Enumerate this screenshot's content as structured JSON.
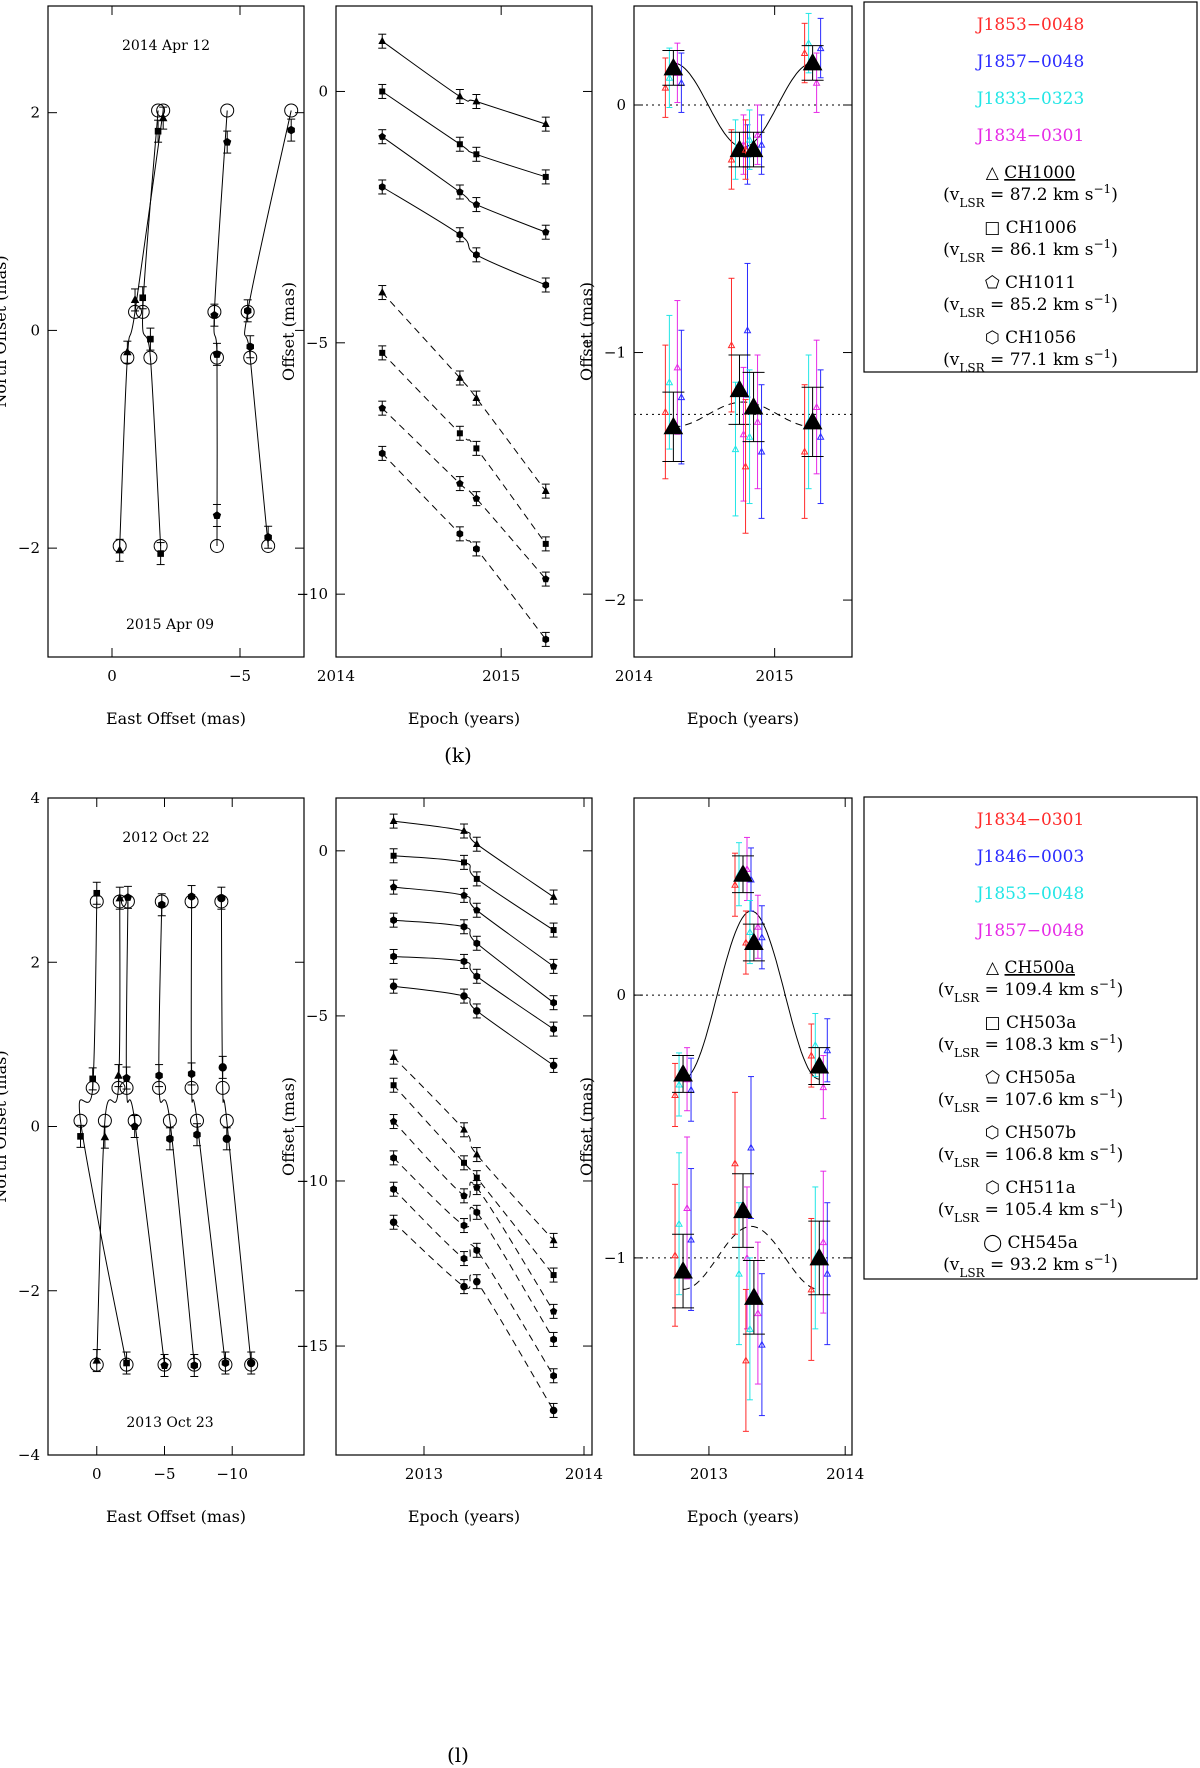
{
  "figure": {
    "panels": [
      {
        "caption": "(k)",
        "sky": {
          "xlabel": "East Offset (mas)",
          "ylabel": "North Offset (mas)",
          "xlim": [
            2.5,
            -7.5
          ],
          "ylim": [
            -3.0,
            2.98
          ],
          "xticks": [
            0,
            -5
          ],
          "yticks": [
            -2,
            0,
            2
          ],
          "epoch_start": "2014 Apr 12",
          "epoch_end": "2015 Apr 09",
          "spots": [
            {
              "x": [
                -2.0,
                -0.9,
                -0.6,
                -0.3
              ],
              "y": [
                1.95,
                0.28,
                -0.2,
                -2.02
              ],
              "marker": "triangle"
            },
            {
              "x": [
                -1.8,
                -1.2,
                -1.5,
                -1.9
              ],
              "y": [
                1.83,
                0.3,
                -0.08,
                -2.05
              ],
              "marker": "square"
            },
            {
              "x": [
                -4.5,
                -4.0,
                -4.1,
                -4.1
              ],
              "y": [
                1.73,
                0.14,
                -0.22,
                -1.7
              ],
              "marker": "pentagon"
            },
            {
              "x": [
                -7.0,
                -5.3,
                -5.4,
                -6.1
              ],
              "y": [
                1.84,
                0.18,
                -0.15,
                -1.9
              ],
              "marker": "hexagon"
            }
          ],
          "model_x": [
            -2.0,
            -0.4,
            -0.7,
            -0.3
          ],
          "model_y": [
            2.02,
            0.17,
            -0.25,
            -1.98
          ]
        },
        "time": {
          "xlabel": "Epoch (years)",
          "ylabel": "Offset (mas)",
          "xlim": [
            2014.0,
            2015.55
          ],
          "ylim": [
            -11.25,
            1.7
          ],
          "xticks": [
            2014,
            2015
          ],
          "yticks": [
            0,
            -5,
            -10
          ],
          "epochs": [
            2014.28,
            2014.75,
            2014.85,
            2015.27
          ],
          "series": [
            {
              "values": [
                1.0,
                -0.1,
                -0.2,
                -0.65
              ],
              "style": "solid",
              "marker": "triangle"
            },
            {
              "values": [
                0.0,
                -1.05,
                -1.25,
                -1.7
              ],
              "style": "solid",
              "marker": "square"
            },
            {
              "values": [
                -0.9,
                -2.0,
                -2.25,
                -2.8
              ],
              "style": "solid",
              "marker": "pentagon"
            },
            {
              "values": [
                -1.9,
                -2.85,
                -3.25,
                -3.85
              ],
              "style": "solid",
              "marker": "hexagon"
            },
            {
              "values": [
                -4.0,
                -5.7,
                -6.1,
                -7.95
              ],
              "style": "dashed",
              "marker": "triangle"
            },
            {
              "values": [
                -5.2,
                -6.8,
                -7.1,
                -9.0
              ],
              "style": "dashed",
              "marker": "square"
            },
            {
              "values": [
                -6.3,
                -7.8,
                -8.1,
                -9.7
              ],
              "style": "dashed",
              "marker": "pentagon"
            },
            {
              "values": [
                -7.2,
                -8.8,
                -9.1,
                -10.9
              ],
              "style": "dashed",
              "marker": "hexagon"
            }
          ]
        },
        "residual": {
          "xlabel": "Epoch (years)",
          "ylabel": "Offset (mas)",
          "xlim": [
            2014.0,
            2015.55
          ],
          "ylim": [
            -2.23,
            0.4
          ],
          "xticks": [
            2014,
            2015
          ],
          "yticks": [
            0,
            -1,
            -2
          ],
          "epochs": [
            2014.28,
            2014.75,
            2014.85,
            2015.27
          ],
          "upper_mean": [
            0.15,
            -0.18,
            -0.18,
            0.17
          ],
          "lower_mean": [
            -1.3,
            -1.15,
            -1.22,
            -1.28
          ],
          "upper_offset": 0.0,
          "lower_offset": -1.25,
          "model_amplitude": 0.17,
          "lower_model_amplitude": 0.05
        },
        "legend": {
          "quasars": [
            {
              "name": "J1853−0048",
              "color": "#ff2a2a"
            },
            {
              "name": "J1857−0048",
              "color": "#2a2aff"
            },
            {
              "name": "J1833−0323",
              "color": "#22e6e6"
            },
            {
              "name": "J1834−0301",
              "color": "#e62ae6"
            }
          ],
          "spots": [
            {
              "symbol": "△",
              "name": "CH1000",
              "underline": true,
              "vlsr": "87.2"
            },
            {
              "symbol": "□",
              "name": "CH1006",
              "underline": false,
              "vlsr": "86.1"
            },
            {
              "symbol": "⬠",
              "name": "CH1011",
              "underline": false,
              "vlsr": "85.2"
            },
            {
              "symbol": "⬡",
              "name": "CH1056",
              "underline": false,
              "vlsr": "77.1"
            }
          ]
        }
      },
      {
        "caption": "(l)",
        "sky": {
          "xlabel": "East Offset (mas)",
          "ylabel": "North Offset (mas)",
          "xlim": [
            3.6,
            -15.3
          ],
          "ylim": [
            -4,
            4
          ],
          "xticks": [
            0,
            -5,
            -10
          ],
          "yticks": [
            -4,
            -2,
            0,
            2,
            4
          ],
          "epoch_start": "2012 Oct 22",
          "epoch_end": "2013 Oct 23",
          "spots": [
            {
              "x": [
                -1.7,
                -1.6,
                -0.6,
                0.0
              ],
              "y": [
                2.78,
                0.62,
                -0.13,
                -2.85
              ],
              "marker": "triangle"
            },
            {
              "x": [
                0.0,
                0.3,
                1.2,
                -2.2
              ],
              "y": [
                2.84,
                0.58,
                -0.12,
                -2.88
              ],
              "marker": "square"
            },
            {
              "x": [
                -2.3,
                -2.2,
                -2.8,
                -5.0
              ],
              "y": [
                2.79,
                0.59,
                0.0,
                -2.91
              ],
              "marker": "pentagon"
            },
            {
              "x": [
                -4.8,
                -4.6,
                -5.4,
                -7.2
              ],
              "y": [
                2.7,
                0.62,
                -0.15,
                -2.91
              ],
              "marker": "hexagon"
            },
            {
              "x": [
                -7.0,
                -7.0,
                -7.4,
                -9.5
              ],
              "y": [
                2.8,
                0.64,
                -0.1,
                -2.88
              ],
              "marker": "hexagon"
            },
            {
              "x": [
                -9.2,
                -9.3,
                -9.6,
                -11.4
              ],
              "y": [
                2.78,
                0.72,
                -0.15,
                -2.88
              ],
              "marker": "circle"
            }
          ],
          "model_x": [
            -1.6,
            -1.3,
            -1.1,
            0.1
          ],
          "model_y": [
            2.74,
            0.47,
            0.07,
            -2.9
          ]
        },
        "time": {
          "xlabel": "Epoch (years)",
          "ylabel": "Offset (mas)",
          "xlim": [
            2012.45,
            2014.05
          ],
          "ylim": [
            -18.3,
            1.6
          ],
          "xticks": [
            2013,
            2014
          ],
          "yticks": [
            0,
            -5,
            -10,
            -15
          ],
          "epochs": [
            2012.81,
            2013.25,
            2013.33,
            2013.81
          ],
          "series": [
            {
              "values": [
                0.9,
                0.6,
                0.2,
                -1.4
              ],
              "style": "solid",
              "marker": "triangle"
            },
            {
              "values": [
                -0.15,
                -0.35,
                -0.85,
                -2.4
              ],
              "style": "solid",
              "marker": "square"
            },
            {
              "values": [
                -1.1,
                -1.35,
                -1.8,
                -3.5
              ],
              "style": "solid",
              "marker": "pentagon"
            },
            {
              "values": [
                -2.1,
                -2.3,
                -2.8,
                -4.6
              ],
              "style": "solid",
              "marker": "hexagon"
            },
            {
              "values": [
                -3.2,
                -3.35,
                -3.8,
                -5.4
              ],
              "style": "solid",
              "marker": "hexagon"
            },
            {
              "values": [
                -4.1,
                -4.4,
                -4.85,
                -6.5
              ],
              "style": "solid",
              "marker": "circle"
            },
            {
              "values": [
                -6.25,
                -8.45,
                -9.2,
                -11.8
              ],
              "style": "dashed",
              "marker": "triangle"
            },
            {
              "values": [
                -7.1,
                -9.45,
                -9.9,
                -12.85
              ],
              "style": "dashed",
              "marker": "square"
            },
            {
              "values": [
                -8.2,
                -10.45,
                -10.2,
                -13.95
              ],
              "style": "dashed",
              "marker": "pentagon"
            },
            {
              "values": [
                -9.3,
                -11.35,
                -10.95,
                -14.8
              ],
              "style": "dashed",
              "marker": "hexagon"
            },
            {
              "values": [
                -10.25,
                -12.35,
                -12.1,
                -15.9
              ],
              "style": "dashed",
              "marker": "hexagon"
            },
            {
              "values": [
                -11.25,
                -13.2,
                -13.05,
                -16.95
              ],
              "style": "dashed",
              "marker": "circle"
            }
          ]
        },
        "residual": {
          "xlabel": "Epoch (years)",
          "ylabel": "Offset (mas)",
          "xlim": [
            2012.45,
            2014.05
          ],
          "ylim": [
            -1.75,
            0.75
          ],
          "xticks": [
            2013,
            2014
          ],
          "yticks": [
            0,
            -1
          ],
          "epochs": [
            2012.81,
            2013.25,
            2013.33,
            2013.81
          ],
          "upper_mean": [
            -0.3,
            0.46,
            0.2,
            -0.27
          ],
          "lower_mean": [
            -1.05,
            -0.82,
            -1.15,
            -1.0
          ],
          "upper_offset": 0.0,
          "lower_offset": -1.0,
          "model_amplitude": 0.32,
          "lower_model_amplitude": 0.12
        },
        "legend": {
          "quasars": [
            {
              "name": "J1834−0301",
              "color": "#ff2a2a"
            },
            {
              "name": "J1846−0003",
              "color": "#2a2aff"
            },
            {
              "name": "J1853−0048",
              "color": "#22e6e6"
            },
            {
              "name": "J1857−0048",
              "color": "#e62ae6"
            }
          ],
          "spots": [
            {
              "symbol": "△",
              "name": "CH500a",
              "underline": true,
              "vlsr": "109.4"
            },
            {
              "symbol": "□",
              "name": "CH503a",
              "underline": false,
              "vlsr": "108.3"
            },
            {
              "symbol": "⬠",
              "name": "CH505a",
              "underline": false,
              "vlsr": "107.6"
            },
            {
              "symbol": "⬡",
              "name": "CH507b",
              "underline": false,
              "vlsr": "106.8"
            },
            {
              "symbol": "⬡",
              "name": "CH511a",
              "underline": false,
              "vlsr": "105.4"
            },
            {
              "symbol": "◯",
              "name": "CH545a",
              "underline": false,
              "vlsr": "93.2"
            }
          ]
        }
      }
    ]
  }
}
